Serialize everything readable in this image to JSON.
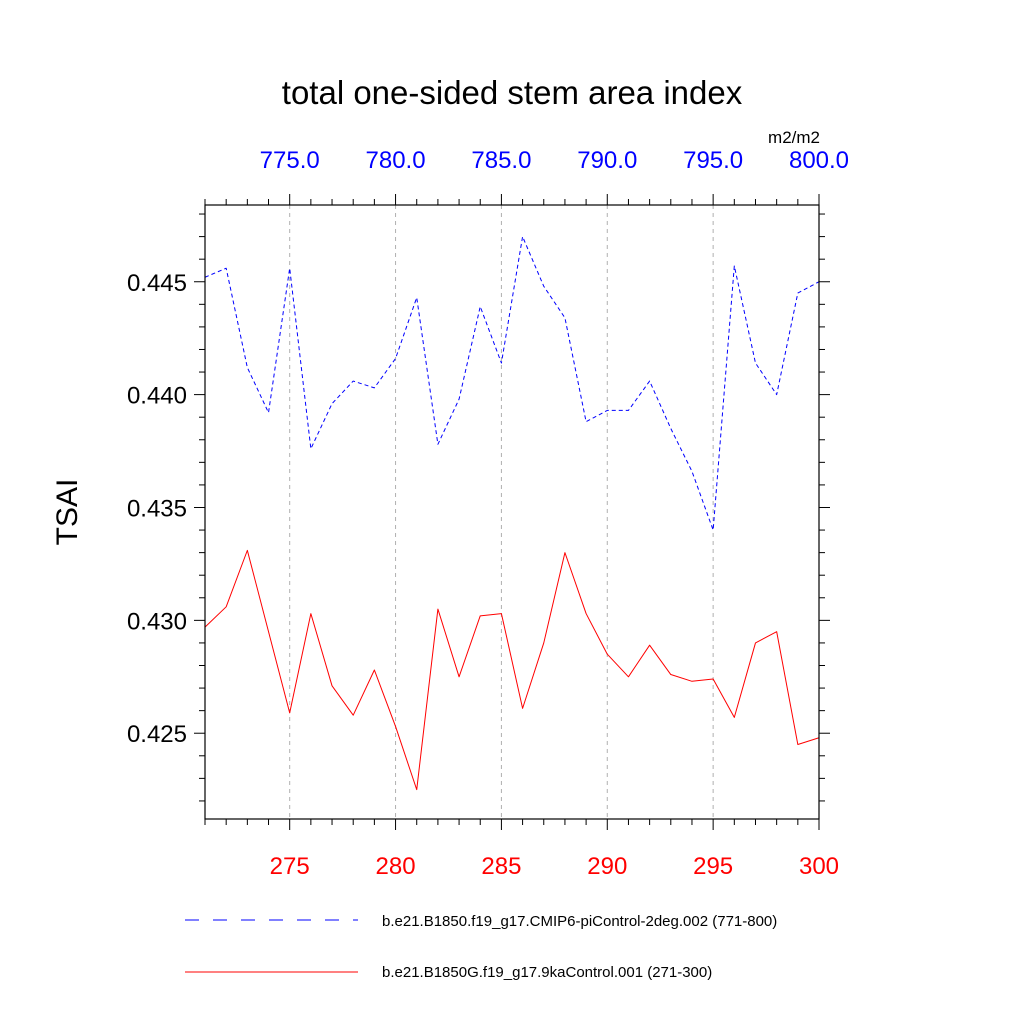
{
  "chart_data": {
    "type": "line",
    "title": "total one-sided stem area index",
    "units": "m2/m2",
    "ylabel": "TSAI",
    "xlabel": "",
    "ylim": [
      0.4212,
      0.4484
    ],
    "yticks": [
      0.425,
      0.43,
      0.435,
      0.44,
      0.445
    ],
    "ytick_labels": [
      "0.425",
      "0.430",
      "0.435",
      "0.440",
      "0.445"
    ],
    "grid": "vertical dashed at major x ticks",
    "bottom_axis": {
      "color": "#ff0000",
      "range": [
        271,
        300
      ],
      "ticks": [
        275,
        280,
        285,
        290,
        295,
        300
      ],
      "tick_labels": [
        "275",
        "280",
        "285",
        "290",
        "295",
        "300"
      ]
    },
    "top_axis": {
      "color": "#0000ff",
      "range": [
        771,
        800
      ],
      "ticks": [
        775,
        780,
        785,
        790,
        795,
        800
      ],
      "tick_labels": [
        "775.0",
        "780.0",
        "785.0",
        "790.0",
        "795.0",
        "800.0"
      ]
    },
    "series": [
      {
        "name": "b.e21.B1850.f19_g17.CMIP6-piControl-2deg.002 (771-800)",
        "label": "b.e21.B1850.f19_g17.CMIP6-piControl-2deg.002 (771-800)",
        "axis": "top",
        "color": "#0000ff",
        "style": "dashed",
        "x": [
          771,
          772,
          773,
          774,
          775,
          776,
          777,
          778,
          779,
          780,
          781,
          782,
          783,
          784,
          785,
          786,
          787,
          788,
          789,
          790,
          791,
          792,
          793,
          794,
          795,
          796,
          797,
          798,
          799,
          800
        ],
        "values": [
          0.4452,
          0.4456,
          0.4412,
          0.4392,
          0.4456,
          0.4376,
          0.4396,
          0.4406,
          0.4403,
          0.4416,
          0.4443,
          0.4378,
          0.4398,
          0.4439,
          0.4414,
          0.447,
          0.4448,
          0.4434,
          0.4388,
          0.4393,
          0.4393,
          0.4406,
          0.4385,
          0.4366,
          0.434,
          0.4457,
          0.4414,
          0.44,
          0.4445,
          0.445
        ]
      },
      {
        "name": "b.e21.B1850G.f19_g17.9kaControl.001 (271-300)",
        "label": "b.e21.B1850G.f19_g17.9kaControl.001 (271-300)",
        "axis": "bottom",
        "color": "#ff0000",
        "style": "solid",
        "x": [
          271,
          272,
          273,
          274,
          275,
          276,
          277,
          278,
          279,
          280,
          281,
          282,
          283,
          284,
          285,
          286,
          287,
          288,
          289,
          290,
          291,
          292,
          293,
          294,
          295,
          296,
          297,
          298,
          299,
          300
        ],
        "values": [
          0.4297,
          0.4306,
          0.4331,
          0.4295,
          0.4259,
          0.4303,
          0.4271,
          0.4258,
          0.4278,
          0.4253,
          0.4225,
          0.4305,
          0.4275,
          0.4302,
          0.4303,
          0.4261,
          0.429,
          0.433,
          0.4303,
          0.4285,
          0.4275,
          0.4289,
          0.4276,
          0.4273,
          0.4274,
          0.4257,
          0.429,
          0.4295,
          0.4245,
          0.4248
        ]
      }
    ]
  }
}
